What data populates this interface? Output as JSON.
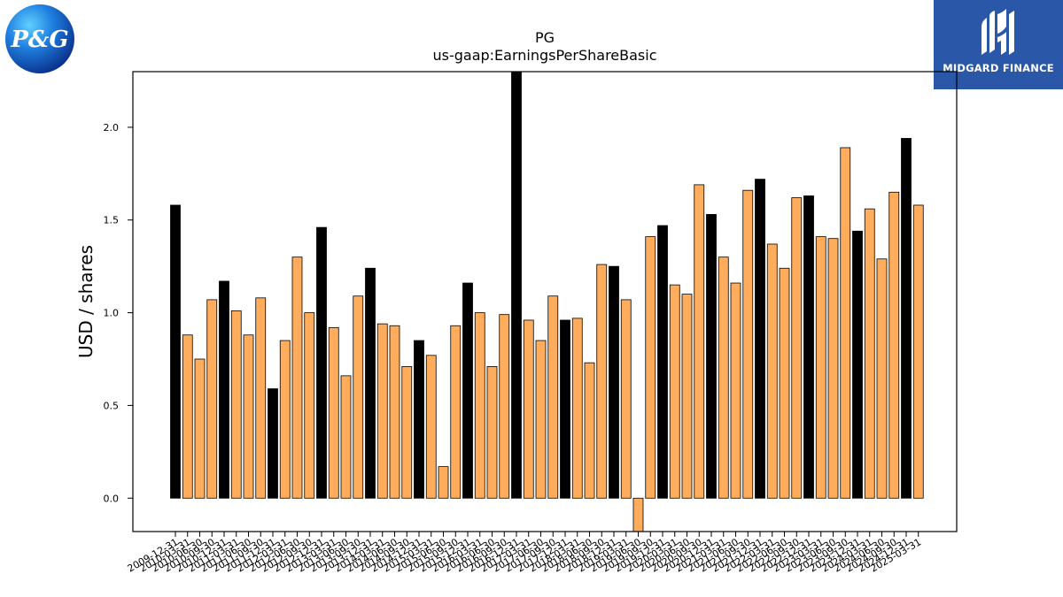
{
  "logos": {
    "left": {
      "text": "P&G"
    },
    "right": {
      "text": "MIDGARD FINANCE",
      "background": "#2b57a8"
    }
  },
  "chart_data": {
    "type": "bar",
    "title": "PG",
    "subtitle": "us-gaap:EarningsPerShareBasic",
    "xlabel": "",
    "ylabel": "USD / shares",
    "ylim": [
      -0.18,
      2.3
    ],
    "yticks": [
      0.0,
      0.5,
      1.0,
      1.5,
      2.0
    ],
    "ytick_labels": [
      "0.0",
      "0.5",
      "1.0",
      "1.5",
      "2.0"
    ],
    "grid": false,
    "colors": {
      "annual": "#000000",
      "quarter": "#ffad5c",
      "edge": "#000000"
    },
    "categories": [
      "2009-12-31",
      "2010-03-31",
      "2010-06-30",
      "2010-09-30",
      "2010-12-31",
      "2011-03-31",
      "2011-06-30",
      "2011-09-30",
      "2011-12-31",
      "2012-03-31",
      "2012-06-30",
      "2012-09-30",
      "2012-12-31",
      "2013-03-31",
      "2013-06-30",
      "2013-09-30",
      "2013-12-31",
      "2014-03-31",
      "2014-06-30",
      "2014-09-30",
      "2014-12-31",
      "2015-03-31",
      "2015-06-30",
      "2015-09-30",
      "2015-12-31",
      "2016-03-31",
      "2016-06-30",
      "2016-09-30",
      "2016-12-31",
      "2017-03-31",
      "2017-06-30",
      "2017-09-30",
      "2017-12-31",
      "2018-03-31",
      "2018-06-30",
      "2018-09-30",
      "2018-12-31",
      "2019-03-31",
      "2019-06-30",
      "2019-09-30",
      "2019-12-31",
      "2020-03-31",
      "2020-06-30",
      "2020-09-30",
      "2020-12-31",
      "2021-03-31",
      "2021-06-30",
      "2021-09-30",
      "2021-12-31",
      "2022-03-31",
      "2022-06-30",
      "2022-09-30",
      "2022-12-31",
      "2023-03-31",
      "2023-06-30",
      "2023-09-30",
      "2023-12-31",
      "2024-03-31",
      "2024-06-30",
      "2024-09-30",
      "2024-12-31",
      "2025-03-31"
    ],
    "values": [
      1.58,
      0.88,
      0.75,
      1.07,
      1.17,
      1.01,
      0.88,
      1.08,
      0.59,
      0.85,
      1.3,
      1.0,
      1.46,
      0.92,
      0.66,
      1.09,
      1.24,
      0.94,
      0.93,
      0.71,
      0.85,
      0.77,
      0.17,
      0.93,
      1.16,
      1.0,
      0.71,
      0.99,
      2.3,
      0.96,
      0.85,
      1.09,
      0.96,
      0.97,
      0.73,
      1.26,
      1.25,
      1.07,
      -0.18,
      1.41,
      1.47,
      1.15,
      1.1,
      1.69,
      1.53,
      1.3,
      1.16,
      1.66,
      1.72,
      1.37,
      1.24,
      1.62,
      1.63,
      1.41,
      1.4,
      1.89,
      1.44,
      1.56,
      1.29,
      1.65,
      1.94,
      1.58
    ],
    "series_type": [
      "annual",
      "quarter",
      "quarter",
      "quarter",
      "annual",
      "quarter",
      "quarter",
      "quarter",
      "annual",
      "quarter",
      "quarter",
      "quarter",
      "annual",
      "quarter",
      "quarter",
      "quarter",
      "annual",
      "quarter",
      "quarter",
      "quarter",
      "annual",
      "quarter",
      "quarter",
      "quarter",
      "annual",
      "quarter",
      "quarter",
      "quarter",
      "annual",
      "quarter",
      "quarter",
      "quarter",
      "annual",
      "quarter",
      "quarter",
      "quarter",
      "annual",
      "quarter",
      "quarter",
      "quarter",
      "annual",
      "quarter",
      "quarter",
      "quarter",
      "annual",
      "quarter",
      "quarter",
      "quarter",
      "annual",
      "quarter",
      "quarter",
      "quarter",
      "annual",
      "quarter",
      "quarter",
      "quarter",
      "annual",
      "quarter",
      "quarter",
      "quarter",
      "annual",
      "quarter"
    ]
  }
}
